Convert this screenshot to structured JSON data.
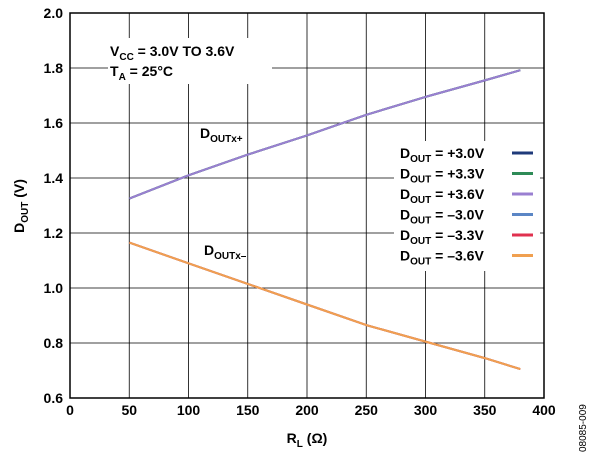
{
  "chart_data": {
    "type": "line",
    "xlabel": "R",
    "xlabel_sub": "L",
    "xlabel_unit": " (Ω)",
    "ylabel": "D",
    "ylabel_sub": "OUT",
    "ylabel_unit": " (V)",
    "xlim": [
      0,
      400
    ],
    "ylim": [
      0.6,
      2.0
    ],
    "xticks": [
      "0",
      "50",
      "100",
      "150",
      "200",
      "250",
      "300",
      "350",
      "400"
    ],
    "yticks": [
      "0.6",
      "0.8",
      "1.0",
      "1.2",
      "1.4",
      "1.6",
      "1.8",
      "2.0"
    ],
    "grid": true,
    "legend_position": "right",
    "x": [
      50,
      100,
      150,
      200,
      250,
      300,
      350,
      380
    ],
    "series": [
      {
        "name_main": "D",
        "name_sub": "OUT",
        "name_rest": " = +3.0V",
        "color": "#1f3a7a",
        "values": [
          1.325,
          1.41,
          1.485,
          1.555,
          1.63,
          1.695,
          1.755,
          1.792
        ]
      },
      {
        "name_main": "D",
        "name_sub": "OUT",
        "name_rest": " = +3.3V",
        "color": "#2e8b57",
        "values": [
          1.325,
          1.41,
          1.485,
          1.555,
          1.63,
          1.695,
          1.755,
          1.792
        ]
      },
      {
        "name_main": "D",
        "name_sub": "OUT",
        "name_rest": " = +3.6V",
        "color": "#9a7fd1",
        "values": [
          1.325,
          1.41,
          1.485,
          1.555,
          1.63,
          1.695,
          1.755,
          1.792
        ]
      },
      {
        "name_main": "D",
        "name_sub": "OUT",
        "name_rest": " = –3.0V",
        "color": "#5b86c5",
        "values": [
          1.165,
          1.09,
          1.015,
          0.94,
          0.865,
          0.805,
          0.745,
          0.705
        ]
      },
      {
        "name_main": "D",
        "name_sub": "OUT",
        "name_rest": " = –3.3V",
        "color": "#e0314f",
        "values": [
          1.165,
          1.09,
          1.015,
          0.94,
          0.865,
          0.805,
          0.745,
          0.705
        ]
      },
      {
        "name_main": "D",
        "name_sub": "OUT",
        "name_rest": " = –3.6V",
        "color": "#f0a050",
        "values": [
          1.165,
          1.09,
          1.015,
          0.94,
          0.865,
          0.805,
          0.745,
          0.705
        ]
      }
    ],
    "annotations": {
      "vcc_main": "V",
      "vcc_sub": "CC",
      "vcc_rest": " = 3.0V TO 3.6V",
      "ta_main": "T",
      "ta_sub": "A",
      "ta_rest": " = 25°C",
      "pos_main": "D",
      "pos_sub": "OUTx+",
      "neg_main": "D",
      "neg_sub": "OUTx–"
    },
    "figure_id": "08085-009"
  }
}
